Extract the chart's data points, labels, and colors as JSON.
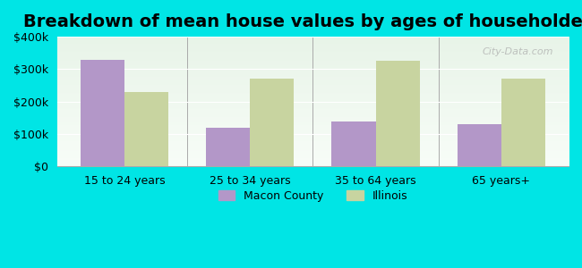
{
  "title": "Breakdown of mean house values by ages of householders",
  "categories": [
    "15 to 24 years",
    "25 to 34 years",
    "35 to 64 years",
    "65 years+"
  ],
  "macon_values": [
    330000,
    120000,
    140000,
    130000
  ],
  "illinois_values": [
    230000,
    270000,
    325000,
    270000
  ],
  "macon_color": "#b397c8",
  "illinois_color": "#c8d4a0",
  "background_color": "#00e5e5",
  "plot_bg_color_top": "#f0f8f0",
  "plot_bg_color_bottom": "#e8f4e8",
  "ylim": [
    0,
    400000
  ],
  "yticks": [
    0,
    100000,
    200000,
    300000,
    400000
  ],
  "ytick_labels": [
    "$0",
    "$100k",
    "$200k",
    "$300k",
    "$400k"
  ],
  "bar_width": 0.35,
  "title_fontsize": 14,
  "tick_fontsize": 9,
  "legend_labels": [
    "Macon County",
    "Illinois"
  ],
  "watermark": "City-Data.com"
}
